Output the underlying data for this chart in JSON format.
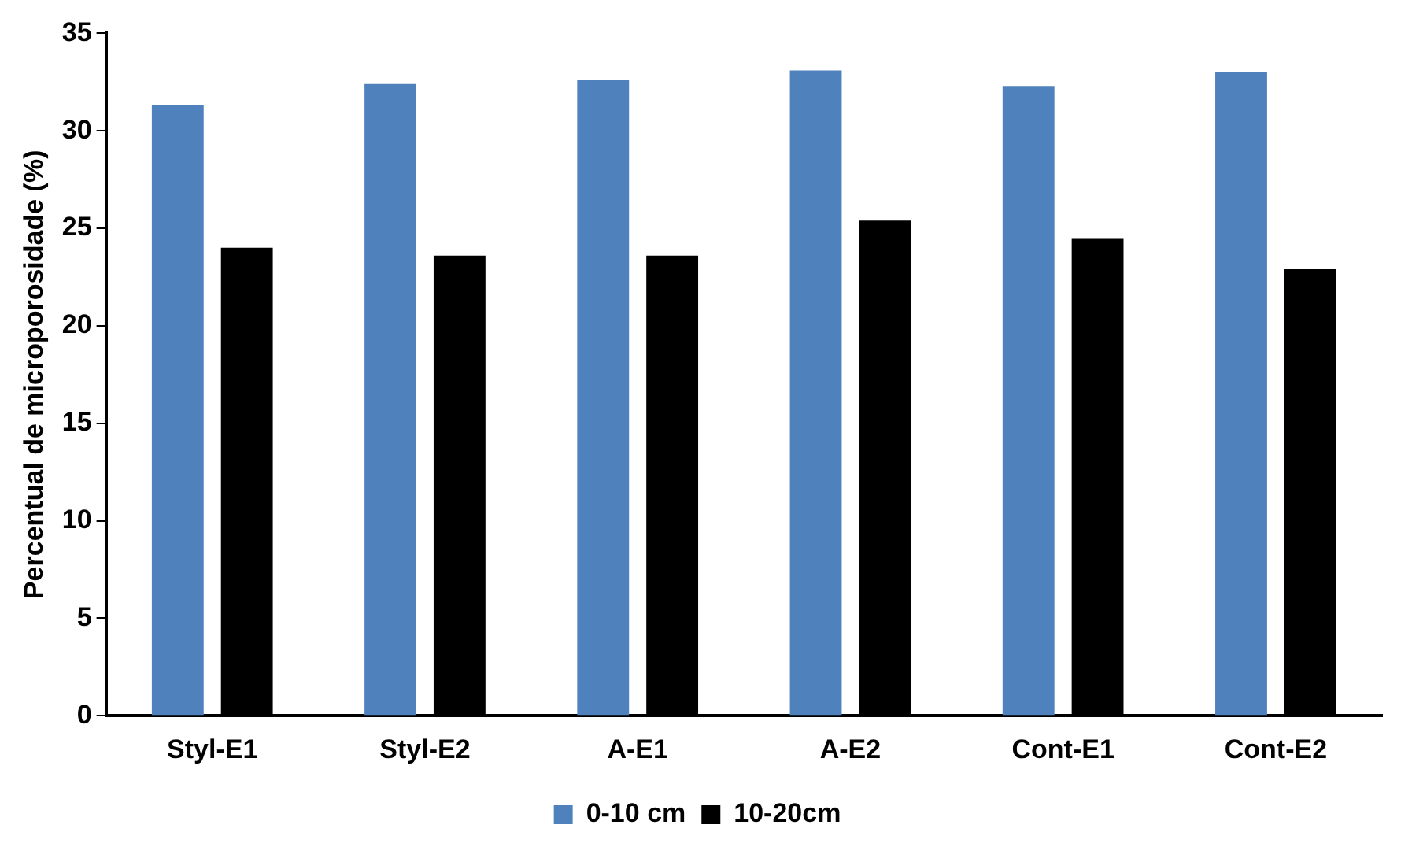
{
  "chart_data": {
    "type": "bar",
    "ylabel": "Percentual de microporosidade (%)",
    "categories": [
      "Styl-E1",
      "Styl-E2",
      "A-E1",
      "A-E2",
      "Cont-E1",
      "Cont-E2"
    ],
    "series": [
      {
        "name": "0-10 cm",
        "color": "#4f81bd",
        "values": [
          31.3,
          32.4,
          32.6,
          33.1,
          32.3,
          33.0
        ]
      },
      {
        "name": "10-20cm",
        "color": "#000000",
        "values": [
          24.0,
          23.6,
          23.6,
          25.4,
          24.5,
          22.9
        ]
      }
    ],
    "ylim": [
      0,
      35
    ],
    "yticks": [
      0,
      5,
      10,
      15,
      20,
      25,
      30,
      35
    ],
    "grid": false,
    "legend": "bottom"
  }
}
